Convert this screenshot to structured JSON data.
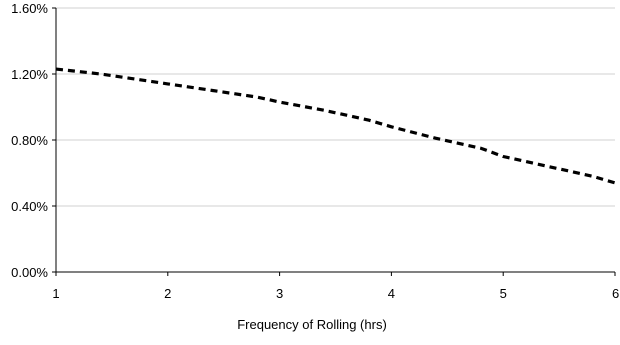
{
  "chart_data": {
    "type": "line",
    "title": "",
    "xlabel": "Frequency of Rolling (hrs)",
    "ylabel": "",
    "xlim": [
      1,
      6
    ],
    "ylim": [
      0,
      0.016
    ],
    "x_ticks": [
      1,
      2,
      3,
      4,
      5,
      6
    ],
    "x_tick_labels": [
      "1",
      "2",
      "3",
      "4",
      "5",
      "6"
    ],
    "y_ticks": [
      0,
      0.004,
      0.008,
      0.012,
      0.016
    ],
    "y_tick_labels": [
      "0.00%",
      "0.40%",
      "0.80%",
      "1.20%",
      "1.60%"
    ],
    "grid": "horizontal",
    "legend": "none",
    "series": [
      {
        "x": [
          1,
          1.4,
          1.8,
          2,
          2.4,
          2.8,
          3,
          3.4,
          3.8,
          4,
          4.4,
          4.8,
          5,
          5.4,
          5.8,
          6
        ],
        "y": [
          0.0123,
          0.012,
          0.0116,
          0.0114,
          0.011,
          0.0106,
          0.0103,
          0.0098,
          0.0092,
          0.0088,
          0.0081,
          0.0075,
          0.007,
          0.0064,
          0.0058,
          0.0054
        ],
        "style": "dashed",
        "color": "#000000"
      }
    ]
  }
}
